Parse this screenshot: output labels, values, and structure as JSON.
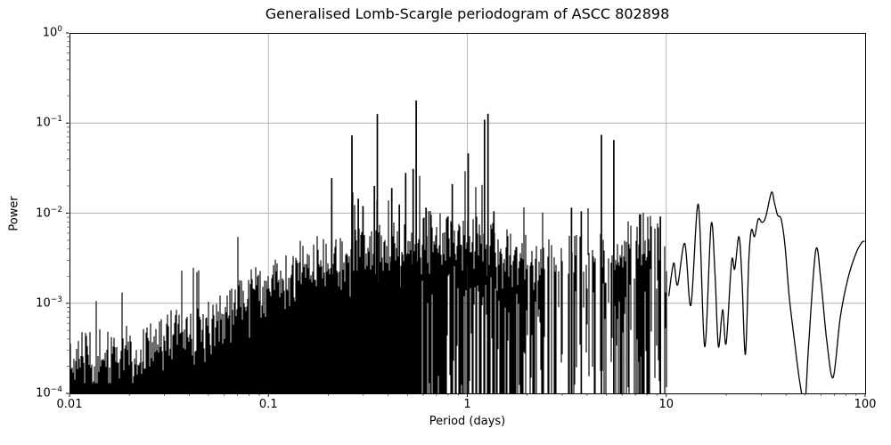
{
  "chart_data": {
    "type": "line",
    "title": "Generalised Lomb-Scargle periodogram of ASCC 802898",
    "xlabel": "Period (days)",
    "ylabel": "Power",
    "xscale": "log",
    "yscale": "log",
    "xlim": [
      0.01,
      100
    ],
    "ylim": [
      0.0001,
      1
    ],
    "grid": true,
    "legend": "none",
    "colors": {
      "line": "#000000",
      "grid": "#b0b0b0",
      "spine": "#000000",
      "background": "#ffffff"
    },
    "x_ticks": [
      {
        "value": 0.01,
        "label": "0.01"
      },
      {
        "value": 0.1,
        "label": "0.1"
      },
      {
        "value": 1,
        "label": "1"
      },
      {
        "value": 10,
        "label": "10"
      },
      {
        "value": 100,
        "label": "100"
      }
    ],
    "y_ticks": [
      {
        "value": 1,
        "base": "10",
        "exponent": "0"
      },
      {
        "value": 0.1,
        "base": "10",
        "exponent": "−1"
      },
      {
        "value": 0.01,
        "base": "10",
        "exponent": "−2"
      },
      {
        "value": 0.001,
        "base": "10",
        "exponent": "−3"
      },
      {
        "value": 0.0001,
        "base": "10",
        "exponent": "−4"
      }
    ],
    "series": {
      "noise_envelope": [
        [
          0.01,
          0.00036
        ],
        [
          0.013,
          0.00042
        ],
        [
          0.016,
          0.00046
        ],
        [
          0.02,
          0.00052
        ],
        [
          0.025,
          0.00058
        ],
        [
          0.032,
          0.00072
        ],
        [
          0.04,
          0.0009
        ],
        [
          0.05,
          0.00115
        ],
        [
          0.063,
          0.0015
        ],
        [
          0.079,
          0.0022
        ],
        [
          0.1,
          0.0032
        ],
        [
          0.126,
          0.0042
        ],
        [
          0.158,
          0.0046
        ],
        [
          0.2,
          0.005
        ],
        [
          0.251,
          0.0055
        ],
        [
          0.316,
          0.006
        ],
        [
          0.398,
          0.0068
        ],
        [
          0.501,
          0.008
        ],
        [
          0.631,
          0.0085
        ],
        [
          0.794,
          0.0085
        ],
        [
          1.0,
          0.0085
        ],
        [
          1.259,
          0.008
        ],
        [
          1.585,
          0.0055
        ],
        [
          2.0,
          0.0046
        ],
        [
          2.512,
          0.004
        ],
        [
          3.162,
          0.0052
        ],
        [
          3.981,
          0.0046
        ],
        [
          5.012,
          0.0055
        ],
        [
          6.31,
          0.0065
        ],
        [
          7.943,
          0.009
        ],
        [
          10.0,
          0.0065
        ],
        [
          10.5,
          0.004
        ]
      ],
      "peaks": [
        [
          0.208,
          0.0245
        ],
        [
          0.263,
          0.073
        ],
        [
          0.283,
          0.0145
        ],
        [
          0.299,
          0.012
        ],
        [
          0.341,
          0.02
        ],
        [
          0.353,
          0.126
        ],
        [
          0.417,
          0.019
        ],
        [
          0.455,
          0.0125
        ],
        [
          0.49,
          0.028
        ],
        [
          0.534,
          0.031
        ],
        [
          0.553,
          0.178
        ],
        [
          0.62,
          0.0115
        ],
        [
          0.84,
          0.021
        ],
        [
          1.01,
          0.046
        ],
        [
          1.22,
          0.109
        ],
        [
          1.27,
          0.127
        ],
        [
          1.36,
          0.0105
        ],
        [
          3.34,
          0.0115
        ],
        [
          3.74,
          0.0105
        ],
        [
          4.72,
          0.074
        ],
        [
          5.45,
          0.065
        ],
        [
          7.36,
          0.0097
        ],
        [
          9.35,
          0.0092
        ]
      ],
      "smooth_tail": [
        [
          10.3,
          0.0012
        ],
        [
          10.9,
          0.0028
        ],
        [
          11.4,
          0.0016
        ],
        [
          12.4,
          0.0046
        ],
        [
          13.3,
          0.00095
        ],
        [
          14.5,
          0.0125
        ],
        [
          15.6,
          0.00033
        ],
        [
          16.8,
          0.0075
        ],
        [
          17.6,
          0.002
        ],
        [
          18.3,
          0.00033
        ],
        [
          19.2,
          0.00085
        ],
        [
          20.0,
          0.00036
        ],
        [
          21.3,
          0.0029
        ],
        [
          22.1,
          0.0024
        ],
        [
          23.2,
          0.0055
        ],
        [
          24.0,
          0.002
        ],
        [
          25.0,
          0.00027
        ],
        [
          26.0,
          0.003
        ],
        [
          26.8,
          0.0065
        ],
        [
          27.8,
          0.0055
        ],
        [
          29.0,
          0.0086
        ],
        [
          30.3,
          0.0079
        ],
        [
          31.6,
          0.009
        ],
        [
          33.8,
          0.017
        ],
        [
          35.0,
          0.013
        ],
        [
          36.3,
          0.0095
        ],
        [
          37.8,
          0.0086
        ],
        [
          39.5,
          0.0045
        ],
        [
          41.5,
          0.0012
        ],
        [
          44.0,
          0.0004
        ],
        [
          47.0,
          0.00013
        ],
        [
          49.8,
          8e-05
        ],
        [
          52.0,
          0.00035
        ],
        [
          56.5,
          0.0039
        ],
        [
          60.0,
          0.0017
        ],
        [
          64.0,
          0.0004
        ],
        [
          69.0,
          0.00015
        ],
        [
          75.0,
          0.0007
        ],
        [
          82.0,
          0.0019
        ],
        [
          90.0,
          0.0036
        ],
        [
          96.0,
          0.0047
        ],
        [
          100.0,
          0.0049
        ]
      ]
    }
  }
}
